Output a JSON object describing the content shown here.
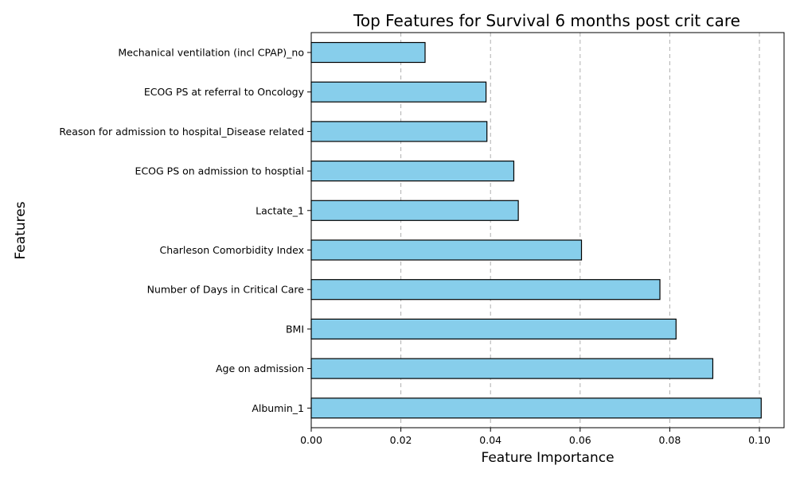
{
  "chart_data": {
    "type": "bar",
    "orientation": "horizontal",
    "title": "Top Features for Survival 6 months post crit care",
    "xlabel": "Feature Importance",
    "ylabel": "Features",
    "categories": [
      "Mechanical ventilation (incl CPAP)_no",
      "ECOG PS at referral to Oncology",
      "Reason for admission to hospital_Disease related",
      "ECOG PS on admission to hosptial",
      "Lactate_1",
      "Charleson Comorbidity Index",
      "Number of Days in Critical Care",
      "BMI",
      "Age on admission",
      "Albumin_1"
    ],
    "values": [
      0.0254,
      0.039,
      0.0392,
      0.0452,
      0.0462,
      0.0603,
      0.0778,
      0.0814,
      0.0896,
      0.1004
    ],
    "xticks": [
      "0.00",
      "0.02",
      "0.04",
      "0.06",
      "0.08",
      "0.10"
    ],
    "xlim": [
      0,
      0.1055
    ],
    "grid": "x-dashed",
    "colors": {
      "bar_fill": "#87ceeb",
      "bar_edge": "#000000",
      "grid": "#b0b0b0"
    }
  }
}
